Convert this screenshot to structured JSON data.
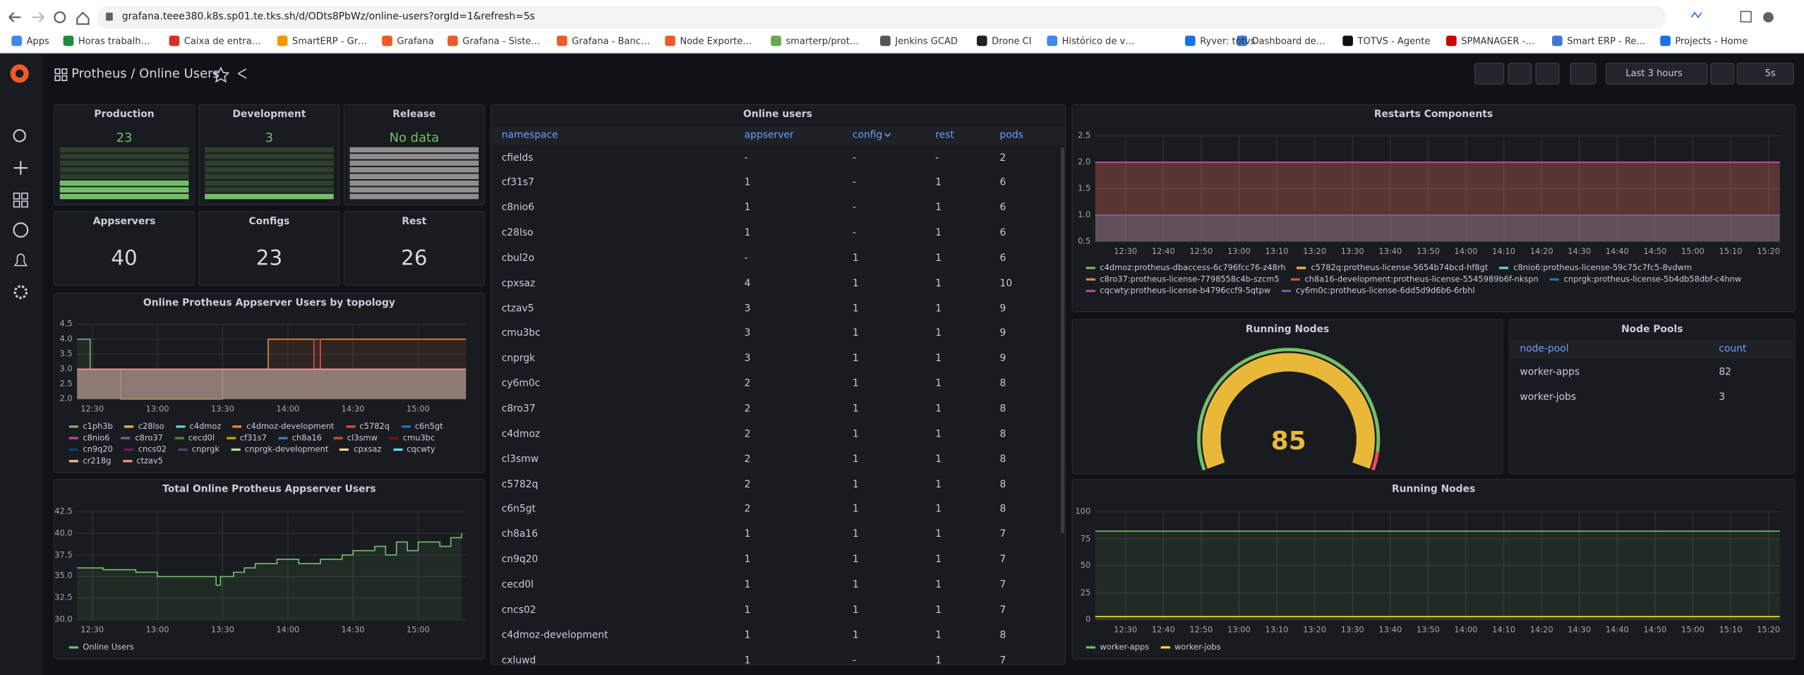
{
  "browser": {
    "url": "grafana.teee380.k8s.sp01.te.tks.sh/d/ODts8PbWz/online-users?orgId=1&refresh=5s",
    "bookmarks": [
      "Apps",
      "Horas trabalh…",
      "Caixa de entra…",
      "SmartERP - Gr…",
      "Grafana",
      "Grafana - Siste…",
      "Grafana - Banc…",
      "Node Exporte…",
      "smarterp/prot…",
      "Jenkins GCAD",
      "Drone CI",
      "Histórico de v…",
      "Ryver: totvs",
      "Dashboard de…",
      "TOTVS - Agente",
      "SPMANAGER -…",
      "Smart ERP - Re…",
      "Projects - Home"
    ]
  },
  "dashboard": {
    "title": "Protheus / Online Users",
    "time_range": "Last 3 hours",
    "refresh": "5s",
    "stats": [
      {
        "title": "Production",
        "value": 23
      },
      {
        "title": "Development",
        "value": 3
      },
      {
        "title": "Release",
        "value": "No data"
      },
      {
        "title": "Appservers",
        "value": 40
      },
      {
        "title": "Configs",
        "value": 23
      },
      {
        "title": "Rest",
        "value": 26
      }
    ],
    "topology_chart": {
      "title": "Online Protheus Appserver Users by topology",
      "xlim": [
        "12:23",
        "15:22"
      ],
      "xticks": [
        "12:30",
        "13:00",
        "13:30",
        "14:00",
        "14:30",
        "15:00"
      ],
      "ylim": [
        2,
        4.5
      ],
      "yticks": [
        {
          "value": 2,
          "label": "2.0"
        },
        {
          "value": 2.5,
          "label": "2.5"
        },
        {
          "value": 3,
          "label": "3.0"
        },
        {
          "value": 3.5,
          "label": "3.5"
        },
        {
          "value": 4,
          "label": "4.0"
        },
        {
          "value": 4.5,
          "label": "4.5"
        }
      ],
      "x": [
        "12:23",
        "12:29",
        "12:43",
        "13:30",
        "13:51",
        "14:12",
        "14:15",
        "15:22"
      ],
      "series": [
        {
          "name": "c1ph3b",
          "color": "#7EB26D",
          "values": [
            4,
            3,
            3,
            3,
            3,
            3,
            3,
            3
          ]
        },
        {
          "name": "c28lso",
          "color": "#EAB839",
          "values": [
            3,
            3,
            2,
            3,
            3,
            3,
            3,
            3
          ]
        },
        {
          "name": "c4dmoz",
          "color": "#6ED0E0",
          "values": [
            3,
            3,
            3,
            3,
            3,
            3,
            3,
            3
          ]
        },
        {
          "name": "c4dmoz-development",
          "color": "#EF843C",
          "values": [
            3,
            3,
            3,
            3,
            4,
            4,
            4,
            4
          ]
        },
        {
          "name": "c5782q",
          "color": "#E24D42",
          "values": [
            3,
            3,
            3,
            3,
            3,
            4,
            3,
            3
          ]
        },
        {
          "name": "c6n5gt",
          "color": "#1F78C1",
          "values": [
            3,
            3,
            3,
            3,
            3,
            3,
            3,
            3
          ]
        },
        {
          "name": "c8nio6",
          "color": "#BA43A9",
          "values": [
            3,
            3,
            3,
            3,
            3,
            3,
            3,
            3
          ]
        },
        {
          "name": "c8ro37",
          "color": "#705DA0",
          "values": [
            3,
            3,
            3,
            3,
            3,
            3,
            3,
            3
          ]
        },
        {
          "name": "cecd0l",
          "color": "#508642",
          "values": [
            3,
            3,
            3,
            3,
            3,
            3,
            3,
            3
          ]
        },
        {
          "name": "cf31s7",
          "color": "#CCA300",
          "values": [
            3,
            3,
            3,
            3,
            3,
            3,
            3,
            3
          ]
        },
        {
          "name": "ch8a16",
          "color": "#447EBC",
          "values": [
            3,
            3,
            3,
            3,
            3,
            3,
            3,
            3
          ]
        },
        {
          "name": "cl3smw",
          "color": "#C15C17",
          "values": [
            3,
            3,
            3,
            3,
            3,
            3,
            3,
            3
          ]
        },
        {
          "name": "cmu3bc",
          "color": "#890F02",
          "values": [
            3,
            3,
            3,
            3,
            3,
            3,
            3,
            3
          ]
        },
        {
          "name": "cn9q20",
          "color": "#0A437C",
          "values": [
            3,
            3,
            3,
            3,
            3,
            3,
            3,
            3
          ]
        },
        {
          "name": "cncs02",
          "color": "#6D1F62",
          "values": [
            3,
            3,
            3,
            3,
            3,
            3,
            3,
            3
          ]
        },
        {
          "name": "cnprgk",
          "color": "#584477",
          "values": [
            3,
            3,
            3,
            3,
            3,
            3,
            3,
            3
          ]
        },
        {
          "name": "cnprgk-development",
          "color": "#B7DBAB",
          "values": [
            3,
            3,
            3,
            3,
            3,
            3,
            3,
            3
          ]
        },
        {
          "name": "cpxsaz",
          "color": "#F4D598",
          "values": [
            3,
            3,
            3,
            3,
            3,
            3,
            3,
            3
          ]
        },
        {
          "name": "cqcwty",
          "color": "#70DBED",
          "values": [
            3,
            3,
            3,
            3,
            3,
            3,
            3,
            3
          ]
        },
        {
          "name": "cr218g",
          "color": "#F9BA8F",
          "values": [
            3,
            3,
            3,
            3,
            3,
            3,
            3,
            3
          ]
        },
        {
          "name": "ctzav5",
          "color": "#F29191",
          "values": [
            3,
            3,
            3,
            3,
            3,
            3,
            3,
            3
          ]
        }
      ]
    },
    "total_users_chart": {
      "title": "Total Online Protheus Appserver Users",
      "xlim": [
        "12:23",
        "15:22"
      ],
      "xticks": [
        "12:30",
        "13:00",
        "13:30",
        "14:00",
        "14:30",
        "15:00"
      ],
      "ylim": [
        30,
        42.5
      ],
      "yticks": [
        {
          "value": 30,
          "label": "30.0"
        },
        {
          "value": 32.5,
          "label": "32.5"
        },
        {
          "value": 35,
          "label": "35.0"
        },
        {
          "value": 37.5,
          "label": "37.5"
        },
        {
          "value": 40,
          "label": "40.0"
        },
        {
          "value": 42.5,
          "label": "42.5"
        }
      ],
      "x": [
        "12:23",
        "12:35",
        "12:50",
        "13:00",
        "13:15",
        "13:27",
        "13:29",
        "13:35",
        "13:40",
        "13:45",
        "13:55",
        "14:05",
        "14:15",
        "14:25",
        "14:30",
        "14:40",
        "14:45",
        "14:50",
        "14:55",
        "15:00",
        "15:10",
        "15:15",
        "15:20"
      ],
      "series": [
        {
          "name": "Online Users",
          "color": "#73BF69",
          "values": [
            36,
            35.8,
            35.5,
            35,
            35,
            34,
            35,
            35.5,
            36,
            36.5,
            37,
            36.5,
            37,
            37.5,
            38,
            38.5,
            37.5,
            39,
            38,
            39,
            38.5,
            39.5,
            40
          ]
        }
      ]
    },
    "online_users_table": {
      "title": "Online users",
      "columns": [
        "namespace",
        "appserver",
        "config",
        "rest",
        "pods"
      ],
      "rows": [
        [
          "cfields",
          "-",
          "-",
          "-",
          2
        ],
        [
          "cf31s7",
          1,
          "-",
          1,
          6
        ],
        [
          "c8nio6",
          1,
          "-",
          1,
          6
        ],
        [
          "c28lso",
          1,
          "-",
          1,
          6
        ],
        [
          "cbul2o",
          "-",
          1,
          1,
          6
        ],
        [
          "cpxsaz",
          4,
          1,
          1,
          10
        ],
        [
          "ctzav5",
          3,
          1,
          1,
          9
        ],
        [
          "cmu3bc",
          3,
          1,
          1,
          9
        ],
        [
          "cnprgk",
          3,
          1,
          1,
          9
        ],
        [
          "cy6m0c",
          2,
          1,
          1,
          8
        ],
        [
          "c8ro37",
          2,
          1,
          1,
          8
        ],
        [
          "c4dmoz",
          2,
          1,
          1,
          8
        ],
        [
          "cl3smw",
          2,
          1,
          1,
          8
        ],
        [
          "c5782q",
          2,
          1,
          1,
          8
        ],
        [
          "c6n5gt",
          2,
          1,
          1,
          8
        ],
        [
          "ch8a16",
          1,
          1,
          1,
          7
        ],
        [
          "cn9q20",
          1,
          1,
          1,
          7
        ],
        [
          "cecd0l",
          1,
          1,
          1,
          7
        ],
        [
          "cncs02",
          1,
          1,
          1,
          7
        ],
        [
          "c4dmoz-development",
          1,
          1,
          1,
          8
        ],
        [
          "cxluwd",
          1,
          "-",
          1,
          7
        ]
      ]
    },
    "restarts_chart": {
      "title": "Restarts Components",
      "xlim": [
        "12:22",
        "15:23"
      ],
      "xticks": [
        "12:30",
        "12:40",
        "12:50",
        "13:00",
        "13:10",
        "13:20",
        "13:30",
        "13:40",
        "13:50",
        "14:00",
        "14:10",
        "14:20",
        "14:30",
        "14:40",
        "14:50",
        "15:00",
        "15:10",
        "15:20"
      ],
      "ylim": [
        0.5,
        2.5
      ],
      "yticks": [
        0.5,
        {
          "value": 1,
          "label": "1.0"
        },
        1.5,
        {
          "value": 2,
          "label": "2.0"
        },
        2.5
      ],
      "x": [
        "12:22",
        "15:23"
      ],
      "series": [
        {
          "name": "c4dmoz:protheus-dbaccess-6c796fcc76-z48rh",
          "color": "#7EB26D",
          "values": [
            1,
            1
          ]
        },
        {
          "name": "c5782q:protheus-license-5654b74bcd-hf8gt",
          "color": "#EAB839",
          "values": [
            2,
            2
          ]
        },
        {
          "name": "c8nio6:protheus-license-59c75c7fc5-8vdwm",
          "color": "#6ED0E0",
          "values": [
            1,
            1
          ]
        },
        {
          "name": "c8ro37:protheus-license-7798558c4b-szcm5",
          "color": "#EF843C",
          "values": [
            2,
            2
          ]
        },
        {
          "name": "ch8a16-development:protheus-license-5545989b6f-nkspn",
          "color": "#E24D42",
          "values": [
            2,
            2
          ]
        },
        {
          "name": "cnprgk:protheus-license-5b4db58dbf-c4hnw",
          "color": "#1F78C1",
          "values": [
            1,
            1
          ]
        },
        {
          "name": "cqcwty:protheus-license-b4796ccf9-5qtpw",
          "color": "#BA43A9",
          "values": [
            2,
            2
          ]
        },
        {
          "name": "cy6m0c:protheus-license-6dd5d9d6b6-6rbhl",
          "color": "#705DA0",
          "values": [
            1,
            1
          ]
        }
      ]
    },
    "running_nodes_gauge": {
      "title": "Running Nodes",
      "value": 85,
      "color": "#EAB839"
    },
    "node_pools_table": {
      "title": "Node Pools",
      "columns": [
        "node-pool",
        "count"
      ],
      "rows": [
        [
          "worker-apps",
          82
        ],
        [
          "worker-jobs",
          3
        ]
      ]
    },
    "running_nodes_chart": {
      "title": "Running Nodes",
      "xlim": [
        "12:22",
        "15:23"
      ],
      "xticks": [
        "12:30",
        "12:40",
        "12:50",
        "13:00",
        "13:10",
        "13:20",
        "13:30",
        "13:40",
        "13:50",
        "14:00",
        "14:10",
        "14:20",
        "14:30",
        "14:40",
        "14:50",
        "15:00",
        "15:10",
        "15:20"
      ],
      "ylim": [
        0,
        100
      ],
      "yticks": [
        0,
        25,
        50,
        75,
        100
      ],
      "x": [
        "12:22",
        "15:23"
      ],
      "series": [
        {
          "name": "worker-apps",
          "color": "#73BF69",
          "values": [
            82,
            82
          ]
        },
        {
          "name": "worker-jobs",
          "color": "#FADE2A",
          "values": [
            3,
            3
          ]
        }
      ]
    }
  }
}
